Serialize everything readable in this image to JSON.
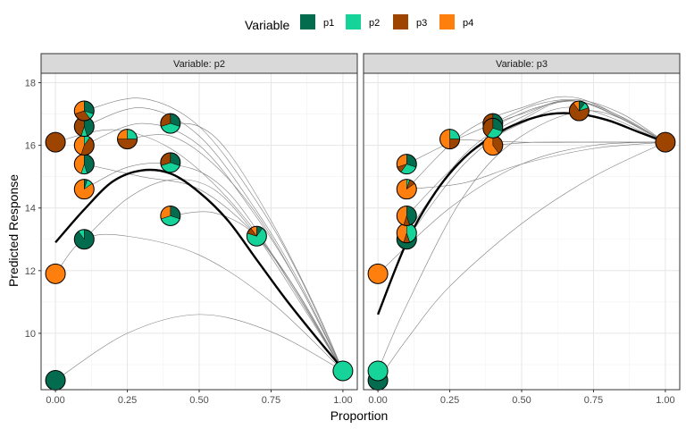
{
  "chart_data": {
    "type": "scatter",
    "facet_variable_label": "Variable",
    "xlabel": "Proportion",
    "ylabel": "Predicted Response",
    "xlim": [
      -0.05,
      1.05
    ],
    "ylim": [
      8.2,
      18.3
    ],
    "x_ticks": [
      "0.00",
      "0.25",
      "0.50",
      "0.75",
      "1.00"
    ],
    "y_ticks": [
      "10",
      "12",
      "14",
      "16",
      "18"
    ],
    "grid": true,
    "legend": {
      "title": "Variable",
      "position": "top",
      "items": [
        {
          "label": "p1",
          "color": "#046C4E"
        },
        {
          "label": "p2",
          "color": "#16D39A"
        },
        {
          "label": "p3",
          "color": "#9C4400"
        },
        {
          "label": "p4",
          "color": "#FF7F0E"
        }
      ]
    },
    "panels": [
      {
        "strip": "Variable: p2",
        "avg_curve": [
          [
            0.0,
            12.9
          ],
          [
            0.1,
            13.95
          ],
          [
            0.2,
            14.85
          ],
          [
            0.3,
            15.2
          ],
          [
            0.4,
            15.1
          ],
          [
            0.5,
            14.5
          ],
          [
            0.6,
            13.6
          ],
          [
            0.7,
            12.35
          ],
          [
            0.8,
            11.1
          ],
          [
            0.9,
            9.95
          ],
          [
            1.0,
            8.85
          ]
        ],
        "curves": [
          [
            [
              0.0,
              8.5
            ],
            [
              0.25,
              10.0
            ],
            [
              0.5,
              10.6
            ],
            [
              0.75,
              10.05
            ],
            [
              1.0,
              8.8
            ]
          ],
          [
            [
              0.0,
              11.9
            ],
            [
              0.1,
              13.0
            ],
            [
              0.25,
              13.1
            ],
            [
              0.5,
              12.5
            ],
            [
              0.75,
              11.0
            ],
            [
              1.0,
              8.8
            ]
          ],
          [
            [
              0.1,
              13.0
            ],
            [
              0.25,
              14.3
            ],
            [
              0.4,
              14.9
            ],
            [
              0.55,
              14.6
            ],
            [
              0.7,
              13.1
            ],
            [
              0.85,
              11.0
            ],
            [
              1.0,
              8.8
            ]
          ],
          [
            [
              0.0,
              16.1
            ],
            [
              0.2,
              16.5
            ],
            [
              0.4,
              15.9
            ],
            [
              0.6,
              14.3
            ],
            [
              0.8,
              11.9
            ],
            [
              1.0,
              8.8
            ]
          ],
          [
            [
              0.1,
              17.1
            ],
            [
              0.3,
              17.5
            ],
            [
              0.5,
              16.6
            ],
            [
              0.7,
              14.2
            ],
            [
              0.85,
              11.8
            ],
            [
              1.0,
              8.8
            ]
          ],
          [
            [
              0.1,
              16.6
            ],
            [
              0.3,
              17.2
            ],
            [
              0.5,
              16.3
            ],
            [
              0.7,
              13.9
            ],
            [
              0.85,
              11.6
            ],
            [
              1.0,
              8.8
            ]
          ],
          [
            [
              0.1,
              16.0
            ],
            [
              0.3,
              16.7
            ],
            [
              0.5,
              16.0
            ],
            [
              0.7,
              13.7
            ],
            [
              0.85,
              11.5
            ],
            [
              1.0,
              8.8
            ]
          ],
          [
            [
              0.1,
              15.4
            ],
            [
              0.3,
              15.0
            ],
            [
              0.5,
              14.6
            ],
            [
              0.7,
              13.1
            ],
            [
              0.85,
              11.1
            ],
            [
              1.0,
              8.8
            ]
          ],
          [
            [
              0.1,
              14.6
            ],
            [
              0.25,
              15.3
            ],
            [
              0.4,
              15.4
            ],
            [
              0.55,
              14.9
            ],
            [
              0.7,
              13.3
            ],
            [
              1.0,
              8.8
            ]
          ],
          [
            [
              0.25,
              16.2
            ],
            [
              0.4,
              16.3
            ],
            [
              0.55,
              15.4
            ],
            [
              0.7,
              13.8
            ],
            [
              0.85,
              11.5
            ],
            [
              1.0,
              8.8
            ]
          ],
          [
            [
              0.4,
              16.7
            ],
            [
              0.5,
              16.6
            ],
            [
              0.6,
              15.8
            ],
            [
              0.75,
              13.6
            ],
            [
              0.9,
              10.9
            ],
            [
              1.0,
              8.8
            ]
          ],
          [
            [
              0.4,
              13.75
            ],
            [
              0.55,
              13.85
            ],
            [
              0.7,
              13.1
            ],
            [
              0.85,
              11.2
            ],
            [
              1.0,
              8.8
            ]
          ]
        ],
        "points": [
          {
            "x": 0.0,
            "y": 8.5,
            "p1": 1,
            "p2": 0,
            "p3": 0,
            "p4": 0
          },
          {
            "x": 0.0,
            "y": 11.9,
            "p1": 0,
            "p2": 0,
            "p3": 0,
            "p4": 1
          },
          {
            "x": 0.0,
            "y": 16.1,
            "p1": 0,
            "p2": 0,
            "p3": 1,
            "p4": 0
          },
          {
            "x": 0.1,
            "y": 13.0,
            "p1": 0.9,
            "p2": 0.1,
            "p3": 0,
            "p4": 0
          },
          {
            "x": 0.1,
            "y": 14.6,
            "p1": 0.05,
            "p2": 0.1,
            "p3": 0,
            "p4": 0.85
          },
          {
            "x": 0.1,
            "y": 15.4,
            "p1": 0.45,
            "p2": 0.1,
            "p3": 0,
            "p4": 0.45
          },
          {
            "x": 0.1,
            "y": 16.0,
            "p1": 0,
            "p2": 0.1,
            "p3": 0.45,
            "p4": 0.45
          },
          {
            "x": 0.1,
            "y": 16.6,
            "p1": 0.45,
            "p2": 0.1,
            "p3": 0.45,
            "p4": 0
          },
          {
            "x": 0.1,
            "y": 17.1,
            "p1": 0.3,
            "p2": 0.1,
            "p3": 0.3,
            "p4": 0.3
          },
          {
            "x": 0.25,
            "y": 16.2,
            "p1": 0,
            "p2": 0.25,
            "p3": 0.5,
            "p4": 0.25
          },
          {
            "x": 0.4,
            "y": 13.75,
            "p1": 0.3,
            "p2": 0.4,
            "p3": 0,
            "p4": 0.3
          },
          {
            "x": 0.4,
            "y": 15.45,
            "p1": 0.3,
            "p2": 0.4,
            "p3": 0.3,
            "p4": 0
          },
          {
            "x": 0.4,
            "y": 16.7,
            "p1": 0.3,
            "p2": 0.4,
            "p3": 0.3,
            "p4": 0
          },
          {
            "x": 0.7,
            "y": 13.1,
            "p1": 0.1,
            "p2": 0.7,
            "p3": 0.1,
            "p4": 0.1
          },
          {
            "x": 1.0,
            "y": 8.8,
            "p1": 0,
            "p2": 1,
            "p3": 0,
            "p4": 0
          }
        ]
      },
      {
        "strip": "Variable: p3",
        "avg_curve": [
          [
            0.0,
            10.6
          ],
          [
            0.1,
            12.9
          ],
          [
            0.2,
            14.5
          ],
          [
            0.3,
            15.6
          ],
          [
            0.4,
            16.3
          ],
          [
            0.5,
            16.75
          ],
          [
            0.6,
            17.0
          ],
          [
            0.7,
            17.0
          ],
          [
            0.8,
            16.8
          ],
          [
            0.9,
            16.45
          ],
          [
            1.0,
            16.1
          ]
        ],
        "curves": [
          [
            [
              0.0,
              8.5
            ],
            [
              0.1,
              9.8
            ],
            [
              0.25,
              11.5
            ],
            [
              0.5,
              13.5
            ],
            [
              0.75,
              15.0
            ],
            [
              1.0,
              16.1
            ]
          ],
          [
            [
              0.0,
              8.8
            ],
            [
              0.1,
              10.9
            ],
            [
              0.3,
              14.4
            ],
            [
              0.5,
              16.3
            ],
            [
              0.75,
              17.1
            ],
            [
              1.0,
              16.1
            ]
          ],
          [
            [
              0.0,
              11.9
            ],
            [
              0.25,
              14.0
            ],
            [
              0.5,
              15.4
            ],
            [
              0.75,
              16.0
            ],
            [
              1.0,
              16.1
            ]
          ],
          [
            [
              0.1,
              13.0
            ],
            [
              0.3,
              15.4
            ],
            [
              0.5,
              16.8
            ],
            [
              0.7,
              17.4
            ],
            [
              1.0,
              16.1
            ]
          ],
          [
            [
              0.1,
              13.2
            ],
            [
              0.3,
              15.7
            ],
            [
              0.5,
              16.9
            ],
            [
              0.7,
              17.4
            ],
            [
              1.0,
              16.1
            ]
          ],
          [
            [
              0.1,
              13.75
            ],
            [
              0.3,
              15.6
            ],
            [
              0.5,
              16.7
            ],
            [
              0.7,
              17.2
            ],
            [
              1.0,
              16.1
            ]
          ],
          [
            [
              0.1,
              14.6
            ],
            [
              0.3,
              14.8
            ],
            [
              0.5,
              15.4
            ],
            [
              0.75,
              15.9
            ],
            [
              1.0,
              16.1
            ]
          ],
          [
            [
              0.1,
              15.4
            ],
            [
              0.3,
              16.3
            ],
            [
              0.5,
              17.0
            ],
            [
              0.7,
              17.4
            ],
            [
              1.0,
              16.1
            ]
          ],
          [
            [
              0.1,
              14.6
            ],
            [
              0.3,
              16.4
            ],
            [
              0.5,
              17.2
            ],
            [
              0.7,
              17.5
            ],
            [
              1.0,
              16.1
            ]
          ],
          [
            [
              0.25,
              16.2
            ],
            [
              0.5,
              16.1
            ],
            [
              0.75,
              16.1
            ],
            [
              1.0,
              16.1
            ]
          ],
          [
            [
              0.4,
              16.0
            ],
            [
              0.55,
              16.1
            ],
            [
              0.75,
              16.1
            ],
            [
              1.0,
              16.1
            ]
          ],
          [
            [
              0.4,
              16.7
            ],
            [
              0.55,
              17.3
            ],
            [
              0.7,
              17.45
            ],
            [
              0.85,
              17.0
            ],
            [
              1.0,
              16.1
            ]
          ],
          [
            [
              0.4,
              16.6
            ],
            [
              0.55,
              17.2
            ],
            [
              0.7,
              17.4
            ],
            [
              0.85,
              16.9
            ],
            [
              1.0,
              16.1
            ]
          ]
        ],
        "points": [
          {
            "x": 0.0,
            "y": 8.5,
            "p1": 1,
            "p2": 0,
            "p3": 0,
            "p4": 0
          },
          {
            "x": 0.0,
            "y": 8.8,
            "p1": 0,
            "p2": 1,
            "p3": 0,
            "p4": 0
          },
          {
            "x": 0.0,
            "y": 11.9,
            "p1": 0,
            "p2": 0,
            "p3": 0,
            "p4": 1
          },
          {
            "x": 0.1,
            "y": 13.0,
            "p1": 0.9,
            "p2": 0,
            "p3": 0.1,
            "p4": 0
          },
          {
            "x": 0.1,
            "y": 13.2,
            "p1": 0,
            "p2": 0.45,
            "p3": 0.1,
            "p4": 0.45
          },
          {
            "x": 0.1,
            "y": 13.75,
            "p1": 0.45,
            "p2": 0,
            "p3": 0.1,
            "p4": 0.45
          },
          {
            "x": 0.1,
            "y": 14.6,
            "p1": 0,
            "p2": 0.05,
            "p3": 0.1,
            "p4": 0.85
          },
          {
            "x": 0.1,
            "y": 15.4,
            "p1": 0.3,
            "p2": 0.3,
            "p3": 0.1,
            "p4": 0.3
          },
          {
            "x": 0.25,
            "y": 16.2,
            "p1": 0,
            "p2": 0.25,
            "p3": 0.25,
            "p4": 0.5
          },
          {
            "x": 0.4,
            "y": 16.0,
            "p1": 0,
            "p2": 0,
            "p3": 0.4,
            "p4": 0.6
          },
          {
            "x": 0.4,
            "y": 16.7,
            "p1": 0.3,
            "p2": 0.3,
            "p3": 0.4,
            "p4": 0
          },
          {
            "x": 0.4,
            "y": 16.55,
            "p1": 0.3,
            "p2": 0.3,
            "p3": 0.4,
            "p4": 0
          },
          {
            "x": 0.7,
            "y": 17.1,
            "p1": 0.1,
            "p2": 0.1,
            "p3": 0.7,
            "p4": 0.1
          },
          {
            "x": 1.0,
            "y": 16.1,
            "p1": 0,
            "p2": 0,
            "p3": 1,
            "p4": 0
          }
        ]
      }
    ]
  }
}
